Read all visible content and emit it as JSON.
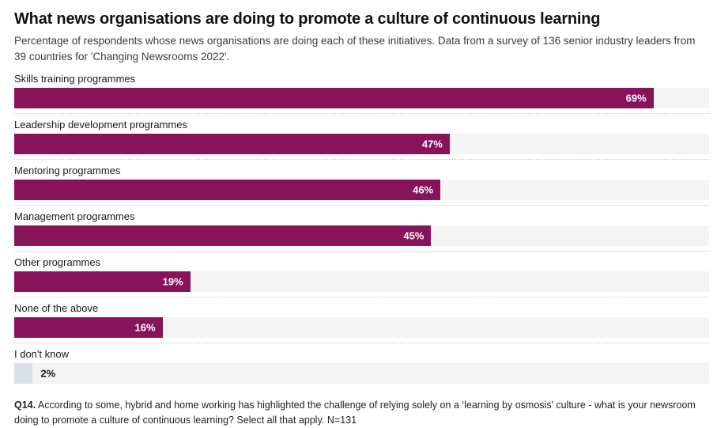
{
  "header": {
    "title": "What news organisations are doing to promote a culture of continuous learning",
    "subtitle": "Percentage of respondents whose news organisations are doing each of these initiatives. Data from a survey of 136 senior industry leaders from 39 countries for 'Changing Newsrooms 2022'."
  },
  "footer": {
    "prefix": "Q14.",
    "text": " According to some, hybrid and home working has highlighted the challenge of relying solely on a ‘learning by osmosis’ culture - what is your newsroom doing to promote a culture of continuous learning? Select all that apply. N=131"
  },
  "chart_data": {
    "type": "bar",
    "orientation": "horizontal",
    "title": "What news organisations are doing to promote a culture of continuous learning",
    "categories": [
      "Skills training programmes",
      "Leadership development programmes",
      "Mentoring programmes",
      "Management programmes",
      "Other programmes",
      "None of the above",
      "I don't know"
    ],
    "values": [
      69,
      47,
      46,
      45,
      19,
      16,
      2
    ],
    "value_labels": [
      "69%",
      "47%",
      "46%",
      "45%",
      "19%",
      "16%",
      "2%"
    ],
    "xlim": [
      0,
      75
    ],
    "grid": false,
    "legend": false,
    "bar_colors": [
      "#87135B",
      "#87135B",
      "#87135B",
      "#87135B",
      "#87135B",
      "#87135B",
      "#D9DEE7"
    ],
    "value_label_positions": [
      "inside",
      "inside",
      "inside",
      "inside",
      "inside",
      "inside",
      "outside"
    ],
    "track_color": "#F4F4F4"
  }
}
